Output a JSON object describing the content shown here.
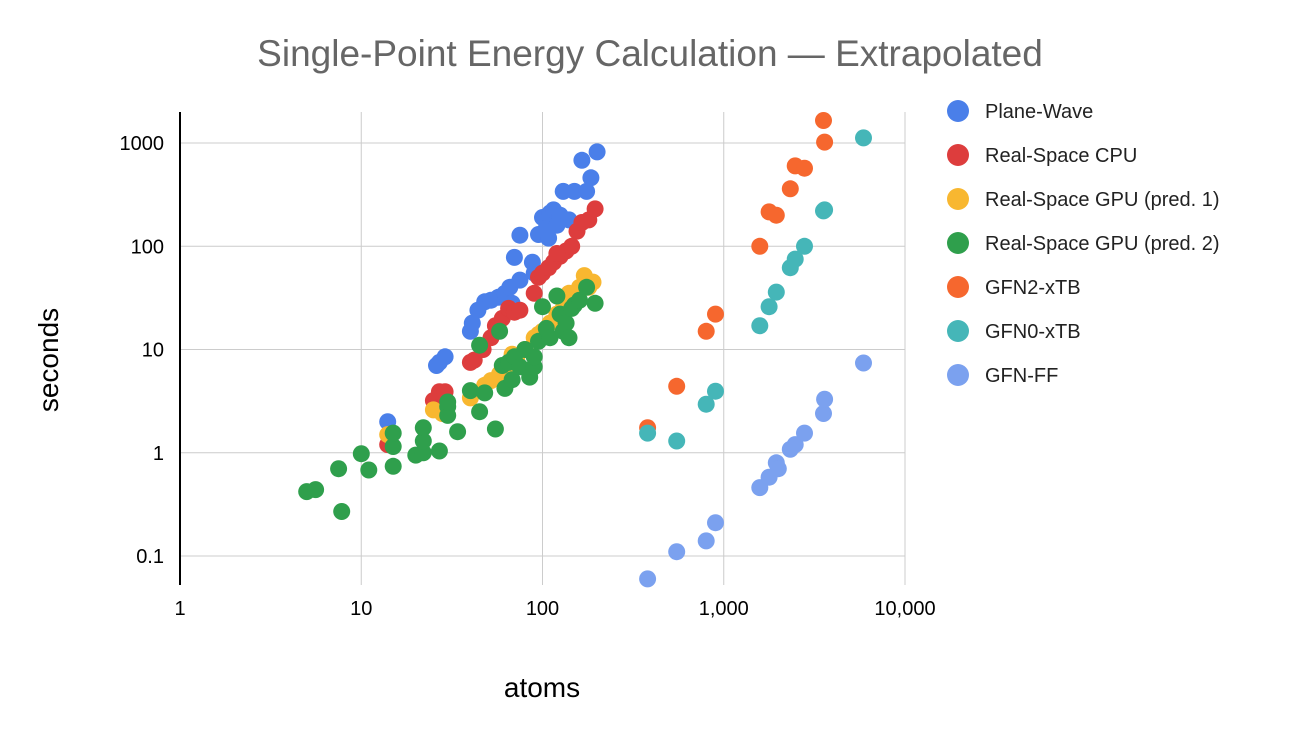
{
  "chart_data": {
    "type": "scatter",
    "title": "Single-Point Energy Calculation — Extrapolated",
    "xlabel": "atoms",
    "ylabel": "seconds",
    "x_scale": "log",
    "y_scale": "log",
    "xlim": [
      1,
      10000
    ],
    "ylim": [
      0.05,
      2000
    ],
    "x_ticks": [
      1,
      10,
      100,
      1000,
      10000
    ],
    "x_tick_labels": [
      "1",
      "10",
      "100",
      "1,000",
      "10,000"
    ],
    "y_ticks": [
      0.1,
      1,
      10,
      100,
      1000
    ],
    "y_tick_labels": [
      "0.1",
      "1",
      "10",
      "100",
      "1000"
    ],
    "grid": true,
    "legend_position": "right",
    "series": [
      {
        "name": "Plane-Wave",
        "color": "#4a7fe9",
        "points": [
          [
            14,
            2.0
          ],
          [
            26,
            7
          ],
          [
            27,
            7.5
          ],
          [
            29,
            8.5
          ],
          [
            40,
            15
          ],
          [
            41,
            18
          ],
          [
            44,
            24
          ],
          [
            48,
            29
          ],
          [
            52,
            30
          ],
          [
            57,
            32
          ],
          [
            62,
            35
          ],
          [
            66,
            40
          ],
          [
            68,
            28
          ],
          [
            70,
            78
          ],
          [
            75,
            128
          ],
          [
            75,
            47
          ],
          [
            88,
            70
          ],
          [
            95,
            130
          ],
          [
            100,
            190
          ],
          [
            105,
            150
          ],
          [
            110,
            210
          ],
          [
            115,
            225
          ],
          [
            120,
            160
          ],
          [
            125,
            200
          ],
          [
            130,
            340
          ],
          [
            140,
            180
          ],
          [
            150,
            340
          ],
          [
            165,
            680
          ],
          [
            175,
            340
          ],
          [
            185,
            460
          ],
          [
            200,
            820
          ],
          [
            90,
            55
          ],
          [
            108,
            120
          ]
        ]
      },
      {
        "name": "Real-Space CPU",
        "color": "#dd3d3d",
        "points": [
          [
            14,
            1.2
          ],
          [
            25,
            3.2
          ],
          [
            27,
            3.9
          ],
          [
            29,
            3.9
          ],
          [
            40,
            7.5
          ],
          [
            42,
            7.9
          ],
          [
            47,
            10
          ],
          [
            52,
            13
          ],
          [
            55,
            17
          ],
          [
            60,
            20
          ],
          [
            65,
            25
          ],
          [
            70,
            23
          ],
          [
            75,
            24
          ],
          [
            90,
            35
          ],
          [
            95,
            50
          ],
          [
            100,
            55
          ],
          [
            108,
            62
          ],
          [
            115,
            70
          ],
          [
            125,
            80
          ],
          [
            135,
            90
          ],
          [
            145,
            100
          ],
          [
            155,
            140
          ],
          [
            165,
            170
          ],
          [
            180,
            180
          ],
          [
            195,
            230
          ],
          [
            120,
            85
          ]
        ]
      },
      {
        "name": "Real-Space GPU (pred. 1)",
        "color": "#f8b730",
        "points": [
          [
            14,
            1.5
          ],
          [
            25,
            2.6
          ],
          [
            28,
            2.4
          ],
          [
            40,
            3.4
          ],
          [
            48,
            4.5
          ],
          [
            52,
            5.0
          ],
          [
            58,
            5.8
          ],
          [
            62,
            6.5
          ],
          [
            68,
            9
          ],
          [
            72,
            8
          ],
          [
            80,
            10
          ],
          [
            90,
            13
          ],
          [
            95,
            14
          ],
          [
            100,
            15
          ],
          [
            110,
            18
          ],
          [
            120,
            22
          ],
          [
            130,
            25
          ],
          [
            140,
            35
          ],
          [
            150,
            30
          ],
          [
            160,
            40
          ],
          [
            170,
            52
          ],
          [
            180,
            40
          ],
          [
            190,
            45
          ]
        ]
      },
      {
        "name": "Real-Space GPU (pred. 2)",
        "color": "#2f9f4c",
        "points": [
          [
            5,
            0.42
          ],
          [
            5.6,
            0.44
          ],
          [
            7.5,
            0.7
          ],
          [
            7.8,
            0.27
          ],
          [
            10,
            0.98
          ],
          [
            11,
            0.68
          ],
          [
            15,
            0.74
          ],
          [
            15,
            1.15
          ],
          [
            15,
            1.55
          ],
          [
            20,
            0.95
          ],
          [
            22,
            1.0
          ],
          [
            22,
            1.3
          ],
          [
            22,
            1.75
          ],
          [
            27,
            1.04
          ],
          [
            30,
            2.3
          ],
          [
            30,
            2.8
          ],
          [
            30,
            3.1
          ],
          [
            34,
            1.6
          ],
          [
            40,
            4.0
          ],
          [
            45,
            2.5
          ],
          [
            45,
            11
          ],
          [
            48,
            3.8
          ],
          [
            55,
            1.7
          ],
          [
            58,
            15
          ],
          [
            60,
            7
          ],
          [
            62,
            4.2
          ],
          [
            65,
            7.5
          ],
          [
            68,
            5.1
          ],
          [
            70,
            8.5
          ],
          [
            75,
            6.8
          ],
          [
            80,
            10
          ],
          [
            85,
            5.4
          ],
          [
            90,
            6.8
          ],
          [
            90,
            8.5
          ],
          [
            95,
            12
          ],
          [
            105,
            16
          ],
          [
            110,
            13
          ],
          [
            120,
            33
          ],
          [
            125,
            22
          ],
          [
            130,
            15
          ],
          [
            135,
            18
          ],
          [
            140,
            13
          ],
          [
            145,
            25
          ],
          [
            150,
            27
          ],
          [
            160,
            30
          ],
          [
            175,
            40
          ],
          [
            195,
            28
          ],
          [
            100,
            26
          ]
        ]
      },
      {
        "name": "GFN2-xTB",
        "color": "#f6672e",
        "points": [
          [
            380,
            1.75
          ],
          [
            550,
            4.4
          ],
          [
            800,
            15
          ],
          [
            900,
            22
          ],
          [
            1580,
            100
          ],
          [
            1780,
            215
          ],
          [
            1950,
            200
          ],
          [
            2330,
            360
          ],
          [
            2480,
            600
          ],
          [
            2790,
            570
          ],
          [
            3550,
            1650
          ],
          [
            3600,
            1020
          ]
        ]
      },
      {
        "name": "GFN0-xTB",
        "color": "#45b6b8",
        "points": [
          [
            380,
            1.55
          ],
          [
            550,
            1.3
          ],
          [
            800,
            2.95
          ],
          [
            900,
            3.95
          ],
          [
            1580,
            17
          ],
          [
            1780,
            26
          ],
          [
            1950,
            36
          ],
          [
            2330,
            62
          ],
          [
            2480,
            75
          ],
          [
            2790,
            100
          ],
          [
            3550,
            220
          ],
          [
            3600,
            225
          ],
          [
            5900,
            1120
          ]
        ]
      },
      {
        "name": "GFN-FF",
        "color": "#7ba1ef",
        "points": [
          [
            380,
            0.06
          ],
          [
            550,
            0.11
          ],
          [
            800,
            0.14
          ],
          [
            900,
            0.21
          ],
          [
            1580,
            0.46
          ],
          [
            1780,
            0.58
          ],
          [
            1950,
            0.8
          ],
          [
            2000,
            0.7
          ],
          [
            2330,
            1.08
          ],
          [
            2480,
            1.2
          ],
          [
            2790,
            1.55
          ],
          [
            3550,
            2.4
          ],
          [
            3600,
            3.3
          ],
          [
            5900,
            7.4
          ]
        ]
      }
    ]
  }
}
